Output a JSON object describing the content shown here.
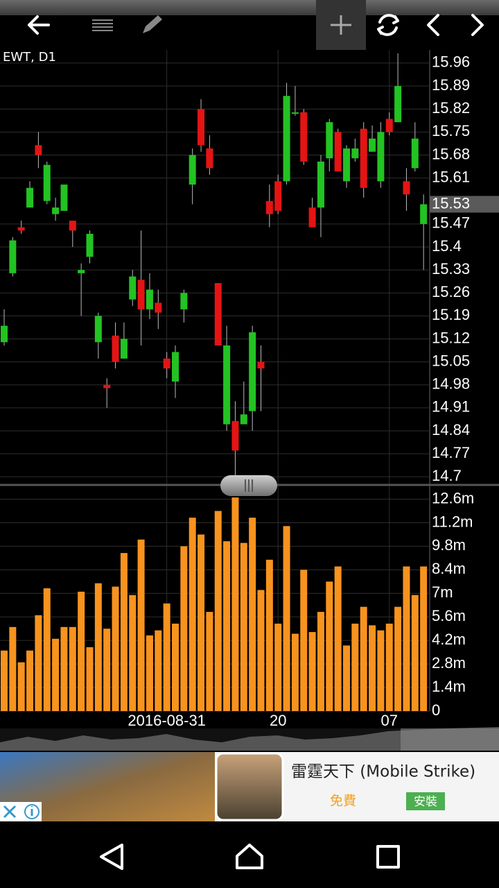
{
  "chart_data": [
    {
      "type": "candlestick",
      "title": "EWT, D1",
      "up_color": "#22c322",
      "down_color": "#e41414",
      "open": [
        15.11,
        15.32,
        15.46,
        15.52,
        15.71,
        15.54,
        15.5,
        15.51,
        15.48,
        15.32,
        15.37,
        15.11,
        14.98,
        15.13,
        15.06,
        15.24,
        15.3,
        15.21,
        15.23,
        15.06,
        14.99,
        15.21,
        15.59,
        15.82,
        15.7,
        15.29,
        14.86,
        14.87,
        14.86,
        14.9,
        15.05,
        15.54,
        15.6,
        15.6,
        15.81,
        15.81,
        15.52,
        15.52,
        15.67,
        15.75,
        15.6,
        15.67,
        15.76,
        15.69,
        15.6,
        15.79,
        15.78,
        15.6,
        15.64,
        15.47
      ],
      "high": [
        15.21,
        15.43,
        15.48,
        15.6,
        15.75,
        15.66,
        15.55,
        15.59,
        15.48,
        15.35,
        15.45,
        15.2,
        15.0,
        15.17,
        15.17,
        15.33,
        15.45,
        15.32,
        15.27,
        15.08,
        15.1,
        15.27,
        15.7,
        15.85,
        15.74,
        15.29,
        15.16,
        14.93,
        14.99,
        15.16,
        15.1,
        15.59,
        15.62,
        15.9,
        15.89,
        15.82,
        15.55,
        15.68,
        15.79,
        15.76,
        15.71,
        15.73,
        15.78,
        15.77,
        15.78,
        15.81,
        15.99,
        15.64,
        15.78,
        15.56
      ],
      "low": [
        15.1,
        15.31,
        15.44,
        15.52,
        15.64,
        15.53,
        15.48,
        15.51,
        15.4,
        15.19,
        15.35,
        15.06,
        14.91,
        15.03,
        15.06,
        15.22,
        15.1,
        15.18,
        15.15,
        15.0,
        14.94,
        15.17,
        15.53,
        15.69,
        15.62,
        15.1,
        14.84,
        14.7,
        14.86,
        14.84,
        14.9,
        15.46,
        15.5,
        15.59,
        15.8,
        15.65,
        15.46,
        15.43,
        15.63,
        15.63,
        15.58,
        15.66,
        15.55,
        15.69,
        15.58,
        15.74,
        15.78,
        15.51,
        15.63,
        15.33
      ],
      "close": [
        15.16,
        15.42,
        15.45,
        15.58,
        15.68,
        15.65,
        15.52,
        15.59,
        15.45,
        15.33,
        15.44,
        15.19,
        14.97,
        15.05,
        15.12,
        15.31,
        15.21,
        15.27,
        15.2,
        15.03,
        15.08,
        15.26,
        15.68,
        15.71,
        15.64,
        15.1,
        15.1,
        14.78,
        14.89,
        15.14,
        15.03,
        15.5,
        15.51,
        15.86,
        15.81,
        15.66,
        15.46,
        15.66,
        15.78,
        15.63,
        15.7,
        15.7,
        15.58,
        15.73,
        15.75,
        15.75,
        15.89,
        15.56,
        15.73,
        15.53
      ],
      "last_price": 15.53,
      "ylim": [
        14.69,
        16.0
      ],
      "yticks": [
        14.7,
        14.77,
        14.84,
        14.91,
        14.98,
        15.05,
        15.12,
        15.19,
        15.26,
        15.33,
        15.4,
        15.47,
        15.61,
        15.68,
        15.75,
        15.82,
        15.89,
        15.96
      ],
      "grid": true
    },
    {
      "type": "bar",
      "color": "#f7931e",
      "categories": [
        null,
        null,
        null,
        null,
        null,
        null,
        null,
        null,
        null,
        null,
        null,
        null,
        null,
        null,
        null,
        null,
        null,
        null,
        null,
        "2016-08-31",
        null,
        null,
        null,
        null,
        null,
        null,
        null,
        null,
        null,
        null,
        null,
        null,
        "20",
        null,
        null,
        null,
        null,
        null,
        null,
        null,
        null,
        null,
        null,
        null,
        null,
        "07",
        null,
        null,
        null,
        null
      ],
      "values": [
        3.6,
        5.0,
        2.9,
        3.6,
        5.7,
        7.3,
        4.3,
        5.0,
        5.0,
        7.1,
        3.8,
        7.6,
        4.9,
        7.4,
        9.4,
        6.9,
        10.2,
        4.5,
        4.8,
        6.4,
        5.2,
        9.8,
        11.5,
        10.5,
        5.9,
        11.9,
        10.1,
        12.7,
        10.0,
        11.5,
        7.2,
        9.0,
        5.2,
        11.0,
        4.6,
        8.4,
        4.7,
        5.9,
        7.7,
        8.6,
        3.9,
        5.2,
        6.2,
        5.1,
        4.8,
        5.2,
        6.2,
        8.6,
        6.9,
        8.6
      ],
      "ylim": [
        0,
        13.2
      ],
      "yticks": [
        0,
        {
          "value": 1.4,
          "label": "1.4m"
        },
        {
          "value": 2.8,
          "label": "2.8m"
        },
        {
          "value": 4.2,
          "label": "4.2m"
        },
        {
          "value": 5.6,
          "label": "5.6m"
        },
        {
          "value": 7,
          "label": "7m"
        },
        {
          "value": 8.4,
          "label": "8.4m"
        },
        {
          "value": 9.8,
          "label": "9.8m"
        },
        {
          "value": 11.2,
          "label": "11.2m"
        },
        {
          "value": 12.6,
          "label": "12.6m"
        }
      ],
      "grid": true
    }
  ],
  "ad": {
    "title": "雷霆天下 (Mobile Strike)",
    "price": "免費",
    "button": "安裝"
  }
}
